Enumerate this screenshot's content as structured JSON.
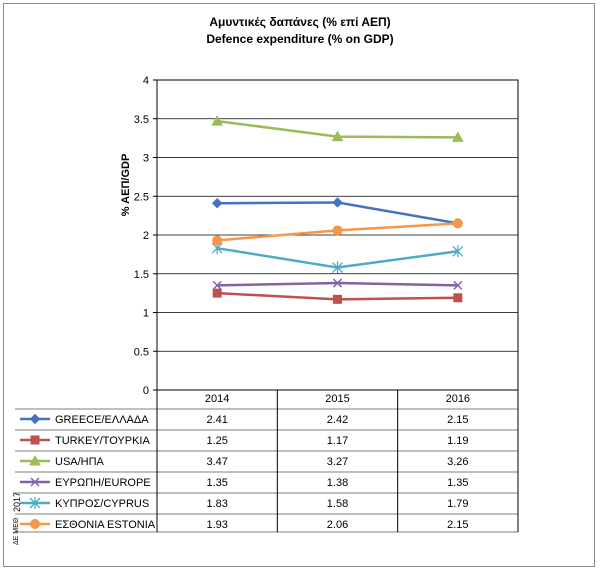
{
  "chart_data": {
    "type": "line",
    "title": "Αμυντικές δαπάνες (% επί ΑΕΠ)",
    "subtitle": "Defence expenditure (% on GDP)",
    "ylabel": "% ΑΕΠ/GDP",
    "xlabel": "",
    "categories": [
      "2014",
      "2015",
      "2016"
    ],
    "ylim": [
      0,
      4
    ],
    "yticks": [
      "0",
      "0.5",
      "1",
      "1.5",
      "2",
      "2.5",
      "3",
      "3.5",
      "4"
    ],
    "grid": true,
    "legend": "data table below plot",
    "series": [
      {
        "name": "GREECE/ΕΛΛΑΔΑ",
        "values": [
          2.41,
          2.42,
          2.15
        ],
        "labels": [
          "2.41",
          "2.42",
          "2.15"
        ],
        "color": "#4472c4",
        "marker": "diamond"
      },
      {
        "name": "TURKEY/ΤΟΥΡΚΙΑ",
        "values": [
          1.25,
          1.17,
          1.19
        ],
        "labels": [
          "1.25",
          "1.17",
          "1.19"
        ],
        "color": "#c0504d",
        "marker": "square"
      },
      {
        "name": "USA/ΗΠΑ",
        "values": [
          3.47,
          3.27,
          3.26
        ],
        "labels": [
          "3.47",
          "3.27",
          "3.26"
        ],
        "color": "#9bbb59",
        "marker": "triangle"
      },
      {
        "name": "ΕΥΡΩΠΗ/EUROPE",
        "values": [
          1.35,
          1.38,
          1.35
        ],
        "labels": [
          "1.35",
          "1.38",
          "1.35"
        ],
        "color": "#8064a2",
        "marker": "x"
      },
      {
        "name": "ΚΥΠΡΟΣ/CYPRUS",
        "values": [
          1.83,
          1.58,
          1.79
        ],
        "labels": [
          "1.83",
          "1.58",
          "1.79"
        ],
        "color": "#4bacc6",
        "marker": "star"
      },
      {
        "name": "ΕΣΘΟΝΙΑ ESTONIA",
        "values": [
          1.93,
          2.06,
          2.15
        ],
        "labels": [
          "1.93",
          "2.06",
          "2.15"
        ],
        "color": "#f79646",
        "marker": "circle"
      }
    ]
  },
  "side_note": {
    "year": "2017",
    "author": "ΔΕ ΜΕΘ"
  }
}
